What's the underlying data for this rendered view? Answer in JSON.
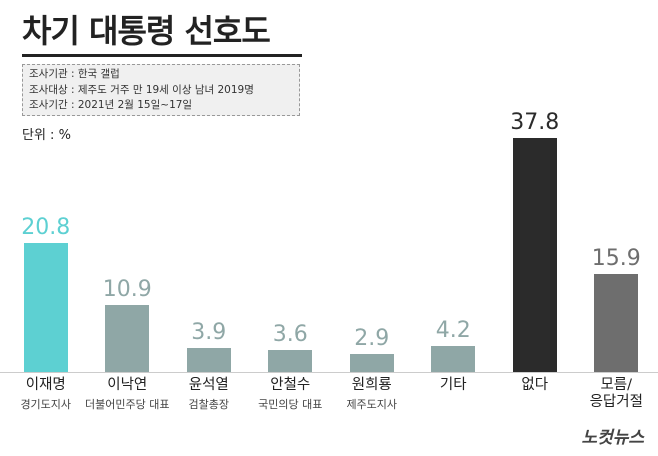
{
  "chart_data": {
    "type": "bar",
    "title": "차기 대통령 선호도",
    "notes": [
      "조사기관 : 한국 갤럽",
      "조사대상 : 제주도 거주 만 19세 이상 남녀 2019명",
      "조사기간 : 2021년 2월 15일~17일"
    ],
    "unit": "단위 : %",
    "categories": [
      "이재명",
      "이낙연",
      "윤석열",
      "안철수",
      "원희룡",
      "기타",
      "없다",
      "모름/\n응답거절"
    ],
    "subtitles": [
      "경기도지사",
      "더불어민주당 대표",
      "검찰총장",
      "국민의당 대표",
      "제주도지사",
      null,
      null,
      null
    ],
    "values": [
      20.8,
      10.9,
      3.9,
      3.6,
      2.9,
      4.2,
      37.8,
      15.9
    ],
    "colors": [
      "#5dd0d2",
      "#8fa7a6",
      "#8fa7a6",
      "#8fa7a6",
      "#8fa7a6",
      "#8fa7a6",
      "#2b2b2b",
      "#6e6e6e"
    ],
    "source": "노컷뉴스"
  }
}
